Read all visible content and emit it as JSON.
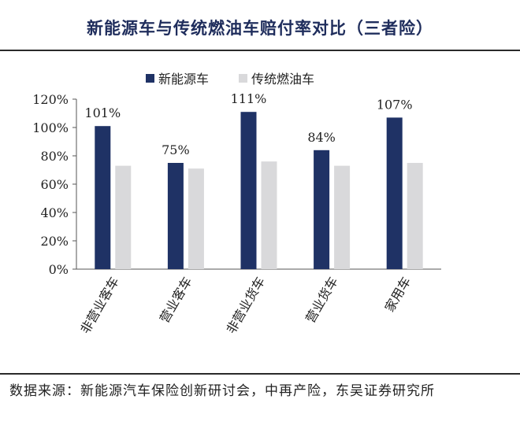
{
  "chart_data": {
    "type": "bar",
    "title": "新能源车与传统燃油车赔付率对比（三者险）",
    "categories": [
      "非营业客车",
      "营业客车",
      "非营业货车",
      "营业货车",
      "家用车"
    ],
    "series": [
      {
        "name": "新能源车",
        "values": [
          101,
          75,
          111,
          84,
          107
        ],
        "labels": [
          "101%",
          "75%",
          "111%",
          "84%",
          "107%"
        ],
        "color": "#1f3265"
      },
      {
        "name": "传统燃油车",
        "values": [
          73,
          71,
          76,
          73,
          75
        ],
        "color": "#d9d9db"
      }
    ],
    "ylim": [
      0,
      120
    ],
    "yticks": [
      "0%",
      "20%",
      "40%",
      "60%",
      "80%",
      "100%",
      "120%"
    ],
    "legend_position": "top",
    "grid": false
  },
  "source": "数据来源：新能源汽车保险创新研讨会，中再产险，东吴证券研究所"
}
